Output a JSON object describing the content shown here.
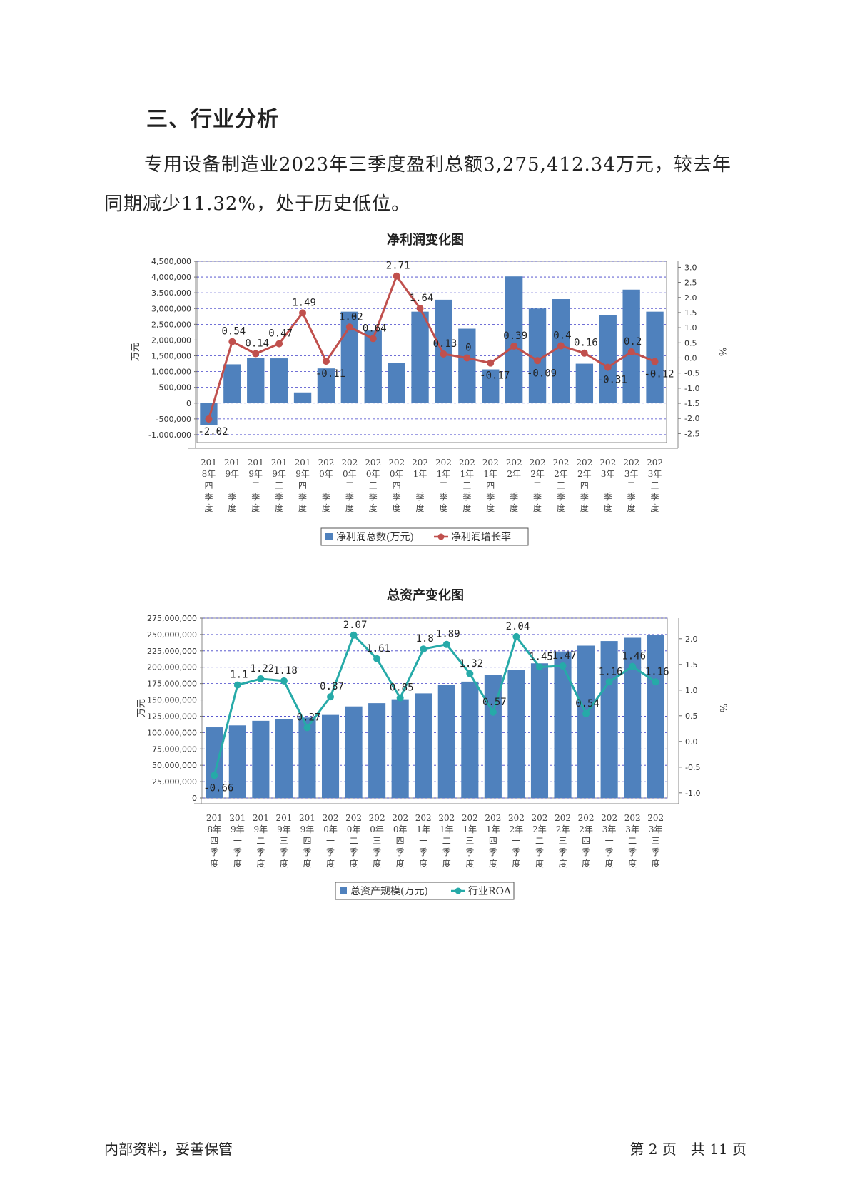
{
  "heading": "三、行业分析",
  "paragraph": "专用设备制造业2023年三季度盈利总额3,275,412.34万元，较去年同期减少11.32%，处于历史低位。",
  "footer": {
    "left": "内部资料，妥善保管",
    "right": "第 2 页　共 11 页"
  },
  "colors": {
    "bar": "#4f81bd",
    "line1": "#c0504d",
    "line2": "#26aaa8",
    "grid": "#4040c8"
  },
  "chart_data": [
    {
      "type": "bar",
      "title": "净利润变化图",
      "categories": [
        "2018年四季度",
        "2019年一季度",
        "2019年二季度",
        "2019年三季度",
        "2019年四季度",
        "2020年一季度",
        "2020年二季度",
        "2020年三季度",
        "2020年四季度",
        "2021年一季度",
        "2021年二季度",
        "2021年三季度",
        "2021年四季度",
        "2022年一季度",
        "2022年二季度",
        "2022年三季度",
        "2022年四季度",
        "2023年一季度",
        "2023年二季度",
        "2023年三季度"
      ],
      "series": [
        {
          "name": "净利润总数(万元)",
          "type": "bar",
          "axis": "left",
          "values": [
            -700000,
            1230000,
            1440000,
            1420000,
            340000,
            1100000,
            2900000,
            2300000,
            1280000,
            2900000,
            3280000,
            2360000,
            1070000,
            4020000,
            3000000,
            3300000,
            1250000,
            2790000,
            3600000,
            2900000
          ]
        },
        {
          "name": "净利润增长率",
          "type": "line",
          "axis": "right",
          "values": [
            -2.02,
            0.54,
            0.14,
            0.47,
            1.49,
            -0.11,
            1.02,
            0.64,
            2.71,
            1.64,
            0.13,
            0,
            -0.17,
            0.39,
            -0.09,
            0.4,
            0.16,
            -0.31,
            0.2,
            -0.12
          ],
          "labels": [
            "-2.02",
            "0.54",
            "0.14",
            "0.47",
            "1.49",
            "-0.11",
            "1.02",
            "0.64",
            "2.71",
            "1.64",
            "0.13",
            "0",
            "-0.17",
            "0.39",
            "-0.09",
            "0.4",
            "0.16",
            "-0.31",
            "0.2",
            "-0.12"
          ]
        }
      ],
      "ylabel": "万元",
      "y2label": "%",
      "ylim": [
        -1250000,
        4500000
      ],
      "yticks": [
        -1000000,
        -500000,
        0,
        500000,
        1000000,
        1500000,
        2000000,
        2500000,
        3000000,
        3500000,
        4000000,
        4500000
      ],
      "yticklabels": [
        "-1,000,000",
        "-500,000",
        "0",
        "500,000",
        "1,000,000",
        "1,500,000",
        "2,000,000",
        "2,500,000",
        "3,000,000",
        "3,500,000",
        "4,000,000",
        "4,500,000"
      ],
      "y2lim": [
        -2.8,
        3.2
      ],
      "y2ticks": [
        -2.5,
        -2,
        -1.5,
        -1,
        -0.5,
        0,
        0.5,
        1,
        1.5,
        2,
        2.5,
        3
      ],
      "y2ticklabels": [
        "-2.5",
        "-2.0",
        "-1.5",
        "-1.0",
        "-0.5",
        "0.0",
        "0.5",
        "1.0",
        "1.5",
        "2.0",
        "2.5",
        "3.0"
      ],
      "grid": true,
      "legend": "bottom"
    },
    {
      "type": "bar",
      "title": "总资产变化图",
      "categories": [
        "2018年四季度",
        "2019年一季度",
        "2019年二季度",
        "2019年三季度",
        "2019年四季度",
        "2020年一季度",
        "2020年二季度",
        "2020年三季度",
        "2020年四季度",
        "2021年一季度",
        "2021年二季度",
        "2021年三季度",
        "2021年四季度",
        "2022年一季度",
        "2022年二季度",
        "2022年三季度",
        "2022年四季度",
        "2023年一季度",
        "2023年二季度",
        "2023年三季度"
      ],
      "series": [
        {
          "name": "总资产规模(万元)",
          "type": "bar",
          "axis": "left",
          "values": [
            108000000,
            111000000,
            118000000,
            121000000,
            123000000,
            127000000,
            140000000,
            145000000,
            151000000,
            160000000,
            173000000,
            178000000,
            188000000,
            196000000,
            206000000,
            224000000,
            233000000,
            240000000,
            245000000,
            249000000
          ]
        },
        {
          "name": "行业ROA",
          "type": "line",
          "axis": "right",
          "values": [
            -0.66,
            1.1,
            1.22,
            1.18,
            0.27,
            0.87,
            2.07,
            1.61,
            0.85,
            1.8,
            1.89,
            1.32,
            0.57,
            2.04,
            1.45,
            1.47,
            0.54,
            1.16,
            1.46,
            1.16
          ],
          "labels": [
            "-0.66",
            "1.1",
            "1.22",
            "1.18",
            "0.27",
            "0.87",
            "2.07",
            "1.61",
            "0.85",
            "1.8",
            "1.89",
            "1.32",
            "0.57",
            "2.04",
            "1.45",
            "1.47",
            "0.54",
            "1.16",
            "1.46",
            "1.16"
          ]
        }
      ],
      "ylabel": "万元",
      "y2label": "%",
      "ylim": [
        0,
        275000000
      ],
      "yticks": [
        0,
        25000000,
        50000000,
        75000000,
        100000000,
        125000000,
        150000000,
        175000000,
        200000000,
        225000000,
        250000000,
        275000000
      ],
      "yticklabels": [
        "0",
        "25,000,000",
        "50,000,000",
        "75,000,000",
        "100,000,000",
        "125,000,000",
        "150,000,000",
        "175,000,000",
        "200,000,000",
        "225,000,000",
        "250,000,000",
        "275,000,000"
      ],
      "y2lim": [
        -1.1,
        2.4
      ],
      "y2ticks": [
        -1,
        -0.5,
        0,
        0.5,
        1,
        1.5,
        2
      ],
      "y2ticklabels": [
        "-1.0",
        "-0.5",
        "0.0",
        "0.5",
        "1.0",
        "1.5",
        "2.0"
      ],
      "grid": true,
      "legend": "bottom"
    }
  ]
}
